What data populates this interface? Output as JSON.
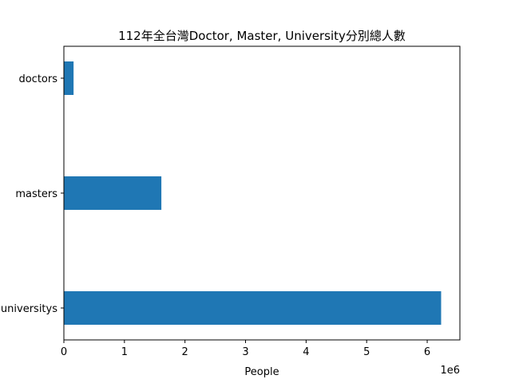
{
  "chart_data": {
    "type": "bar",
    "orientation": "horizontal",
    "title": "112年全台灣Doctor, Master, University分別總人數",
    "xlabel": "People",
    "ylabel": "",
    "x_offset_label": "1e6",
    "categories": [
      "doctors",
      "masters",
      "universitys"
    ],
    "values": [
      160000,
      1610000,
      6230000
    ],
    "xlim": [
      0,
      6540000
    ],
    "xticks": [
      0,
      1000000,
      2000000,
      3000000,
      4000000,
      5000000,
      6000000
    ],
    "xtick_labels": [
      "0",
      "1",
      "2",
      "3",
      "4",
      "5",
      "6"
    ],
    "bar_color": "#1f77b4",
    "grid": false,
    "legend": false
  }
}
